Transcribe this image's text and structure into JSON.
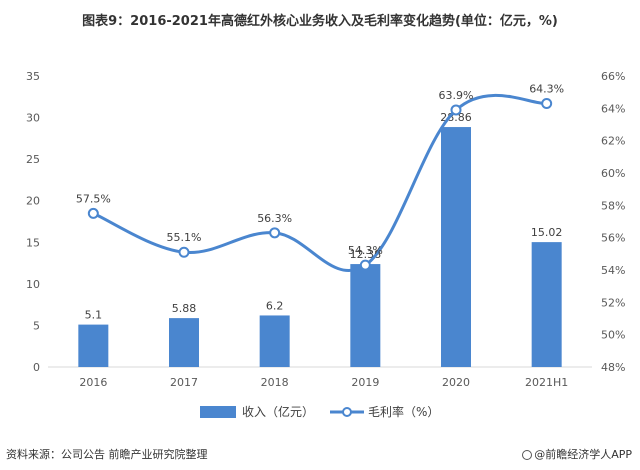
{
  "chart_data": {
    "type": "bar",
    "title": "图表9：2016-2021年高德红外核心业务收入及毛利率变化趋势(单位：亿元，%)",
    "categories": [
      "2016",
      "2017",
      "2018",
      "2019",
      "2020",
      "2021H1"
    ],
    "series": [
      {
        "name": "收入（亿元）",
        "type": "bar",
        "axis": "left",
        "color": "#4a86cf",
        "values": [
          5.1,
          5.88,
          6.2,
          12.38,
          28.86,
          15.02
        ],
        "labels": [
          "5.1",
          "5.88",
          "6.2",
          "12.38",
          "28.86",
          "15.02"
        ]
      },
      {
        "name": "毛利率（%）",
        "type": "line",
        "axis": "right",
        "color": "#4a86cf",
        "values": [
          57.5,
          55.1,
          56.3,
          54.3,
          63.9,
          64.3
        ],
        "labels": [
          "57.5%",
          "55.1%",
          "56.3%",
          "54.3%",
          "63.9%",
          "64.3%"
        ]
      }
    ],
    "y_left": {
      "min": 0,
      "max": 35,
      "step": 5,
      "ticks": [
        "0",
        "5",
        "10",
        "15",
        "20",
        "25",
        "30",
        "35"
      ]
    },
    "y_right": {
      "min": 48,
      "max": 66,
      "step": 2,
      "ticks": [
        "48%",
        "50%",
        "52%",
        "54%",
        "56%",
        "58%",
        "60%",
        "62%",
        "64%",
        "66%"
      ]
    },
    "grid": false,
    "legend": "bottom-center"
  },
  "footer": {
    "source": "资料来源：公司公告 前瞻产业研究院整理",
    "brand": "@前瞻经济学人APP"
  }
}
